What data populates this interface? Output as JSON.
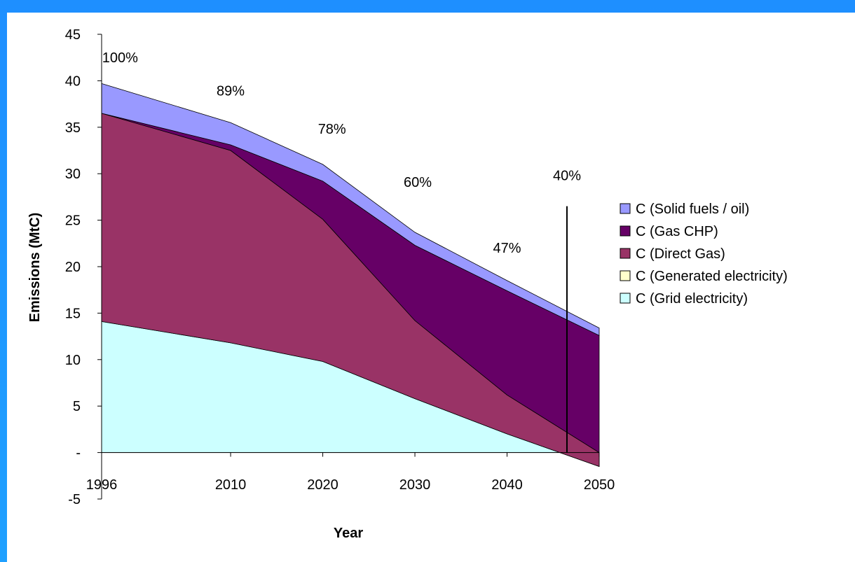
{
  "chart_data": {
    "type": "area",
    "stacked": true,
    "xlabel": "Year",
    "ylabel": "Emissions (MtC)",
    "x": [
      1996,
      2010,
      2020,
      2030,
      2040,
      2050
    ],
    "x_tick_labels": [
      "1996",
      "2010",
      "2020",
      "2030",
      "2040",
      "2050"
    ],
    "ylim": [
      -5,
      45
    ],
    "y_ticks": [
      {
        "value": 45,
        "label": "45"
      },
      {
        "value": 40,
        "label": "40"
      },
      {
        "value": 35,
        "label": "35"
      },
      {
        "value": 30,
        "label": "30"
      },
      {
        "value": 25,
        "label": "25"
      },
      {
        "value": 20,
        "label": "20"
      },
      {
        "value": 15,
        "label": "15"
      },
      {
        "value": 10,
        "label": "10"
      },
      {
        "value": 5,
        "label": "5"
      },
      {
        "value": 0,
        "label": "-"
      },
      {
        "value": -5,
        "label": "-5"
      }
    ],
    "series": [
      {
        "name": "C (Grid electricity)",
        "color": "#ccffff",
        "values": [
          14.1,
          11.8,
          9.8,
          5.8,
          2.0,
          -1.5
        ]
      },
      {
        "name": "C (Generated electricity)",
        "color": "#ffffcc",
        "values": [
          0,
          0,
          0,
          0,
          0,
          0
        ]
      },
      {
        "name": "C (Direct Gas)",
        "color": "#993366",
        "values": [
          22.4,
          20.7,
          15.3,
          8.4,
          4.2,
          1.5
        ]
      },
      {
        "name": "C (Gas CHP)",
        "color": "#660066",
        "values": [
          0,
          0.6,
          4.1,
          8.1,
          11.2,
          12.6
        ]
      },
      {
        "name": "C (Solid fuels / oil)",
        "color": "#9999ff",
        "values": [
          3.2,
          2.4,
          1.8,
          1.4,
          1.1,
          0.8
        ]
      }
    ],
    "legend_order": [
      "C (Solid fuels / oil)",
      "C (Gas CHP)",
      "C (Direct Gas)",
      "C (Generated electricity)",
      "C (Grid electricity)"
    ],
    "legend_position": "right",
    "grid": false,
    "annotations": [
      {
        "x": 1998,
        "y": 42,
        "text": "100%"
      },
      {
        "x": 2010,
        "y": 38.4,
        "text": "89%"
      },
      {
        "x": 2021,
        "y": 34.3,
        "text": "78%"
      },
      {
        "x": 2030.3,
        "y": 28.6,
        "text": "60%"
      },
      {
        "x": 2040,
        "y": 21.5,
        "text": "47%"
      },
      {
        "x": 2046.5,
        "y": 29.3,
        "text": "40%"
      }
    ],
    "reference_line": {
      "x": 2046.5,
      "y_top": 26.5,
      "y_bottom": 0
    }
  }
}
